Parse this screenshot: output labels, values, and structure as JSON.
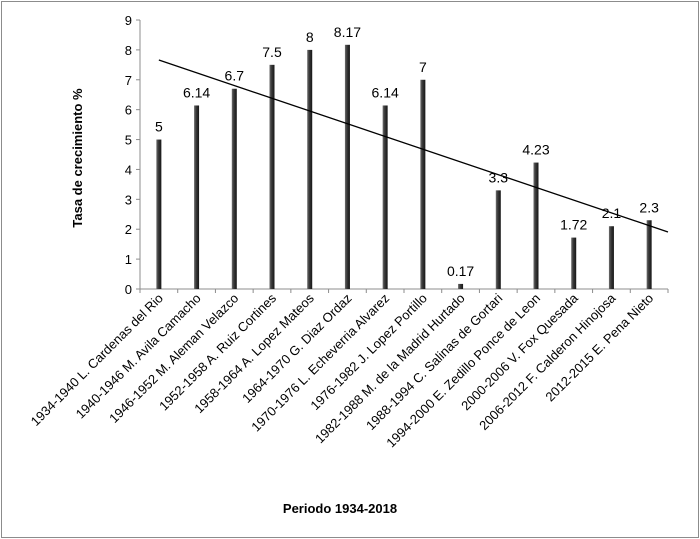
{
  "chart_data": {
    "type": "bar",
    "title": "",
    "xlabel": "Periodo 1934-2018",
    "ylabel": "Tasa de crecimiento %",
    "ylim": [
      0,
      9
    ],
    "yticks": [
      "0",
      "1",
      "2",
      "3",
      "4",
      "5",
      "6",
      "7",
      "8",
      "9"
    ],
    "grid": false,
    "legend": "none",
    "bar_color": "#3f3f3f",
    "trendline": {
      "type": "linear",
      "color": "#000000"
    },
    "categories": [
      "1934-1940 L. Cardenas del Rio",
      "1940-1946 M. Avila Camacho",
      "1946-1952 M. Aleman Velazco",
      "1952-1958  A. Ruiz Cortines",
      "1958-1964 A. Lopez Mateos",
      "1964-1970  G. Diaz Ordaz",
      "1970-1976 L. Echeverria Alvarez",
      "1976-1982 J. Lopez Portillo",
      "1982-1988  M. de la Madrid Hurtado",
      "1988-1994 C. Salinas de Gortari",
      "1994-2000 E. Zedillo Ponce de Leon",
      "2000-2006  V. Fox Quesada",
      "2006-2012 F. Calderon Hinojosa",
      "2012-2015  E. Pena Nieto"
    ],
    "values": [
      5,
      6.14,
      6.7,
      7.5,
      8,
      8.17,
      6.14,
      7,
      0.17,
      3.3,
      4.23,
      1.72,
      2.1,
      2.3
    ],
    "data_labels": [
      "5",
      "6.14",
      "6.7",
      "7.5",
      "8",
      "8.17",
      "6.14",
      "7",
      "0.17",
      "3.3",
      "4.23",
      "1.72",
      "2.1",
      "2.3"
    ]
  }
}
